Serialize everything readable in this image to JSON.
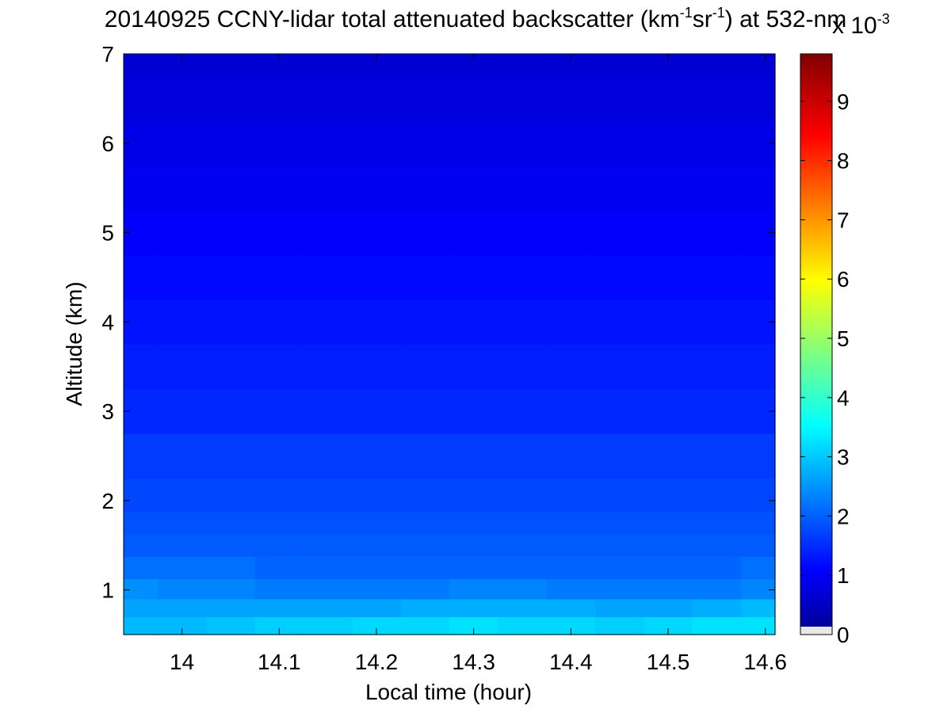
{
  "chart_data": {
    "type": "heatmap",
    "title": {
      "prefix": "20140925 CCNY-lidar total attenuated backscatter (km",
      "sup1": "-1",
      "mid": "sr",
      "sup2": "-1",
      "suffix": ") at 532-nm"
    },
    "xlabel": "Local time (hour)",
    "ylabel": "Altitude (km)",
    "xlim": [
      13.94,
      14.61
    ],
    "ylim": [
      0.5,
      7
    ],
    "x_ticks": [
      "14",
      "14.1",
      "14.2",
      "14.3",
      "14.4",
      "14.5",
      "14.6"
    ],
    "y_ticks": [
      "1",
      "2",
      "3",
      "4",
      "5",
      "6",
      "7"
    ],
    "colorbar": {
      "range": [
        0,
        9.8
      ],
      "ticks": [
        "0",
        "1",
        "2",
        "3",
        "4",
        "5",
        "6",
        "7",
        "8",
        "9"
      ],
      "exponent_base": "x 10",
      "exponent_power": "-3",
      "colormap": "jet"
    },
    "time_bins": [
      13.95,
      14.0,
      14.05,
      14.1,
      14.15,
      14.2,
      14.25,
      14.3,
      14.35,
      14.4,
      14.45,
      14.5,
      14.55,
      14.6
    ],
    "altitude_bins": [
      0.6,
      0.8,
      1.0,
      1.25,
      1.5,
      1.75,
      2.0,
      2.5,
      3.0,
      3.5,
      4.0,
      4.5,
      5.0,
      5.5,
      6.0,
      6.5,
      7.0
    ],
    "values_x1e-3": [
      [
        3.0,
        3.0,
        3.1,
        3.2,
        3.2,
        3.3,
        3.3,
        3.4,
        3.3,
        3.3,
        3.2,
        3.3,
        3.4,
        3.4
      ],
      [
        2.8,
        2.8,
        2.8,
        2.8,
        2.8,
        2.8,
        2.9,
        2.9,
        2.9,
        2.9,
        2.8,
        2.8,
        2.9,
        3.0
      ],
      [
        2.6,
        2.5,
        2.5,
        2.4,
        2.4,
        2.4,
        2.4,
        2.5,
        2.5,
        2.4,
        2.4,
        2.4,
        2.4,
        2.5
      ],
      [
        2.3,
        2.3,
        2.3,
        2.2,
        2.2,
        2.2,
        2.2,
        2.2,
        2.2,
        2.2,
        2.2,
        2.2,
        2.2,
        2.3
      ],
      [
        2.1,
        2.1,
        2.1,
        2.1,
        2.1,
        2.1,
        2.1,
        2.1,
        2.1,
        2.1,
        2.1,
        2.1,
        2.1,
        2.1
      ],
      [
        2.0,
        2.0,
        2.0,
        2.0,
        2.0,
        2.0,
        2.0,
        2.0,
        2.0,
        2.0,
        2.0,
        2.0,
        2.0,
        2.0
      ],
      [
        1.9,
        1.9,
        1.9,
        1.9,
        1.9,
        1.9,
        1.9,
        1.9,
        1.9,
        1.9,
        1.9,
        1.9,
        1.9,
        1.9
      ],
      [
        1.8,
        1.8,
        1.8,
        1.8,
        1.8,
        1.8,
        1.8,
        1.8,
        1.8,
        1.8,
        1.8,
        1.8,
        1.8,
        1.8
      ],
      [
        1.6,
        1.6,
        1.6,
        1.6,
        1.6,
        1.6,
        1.6,
        1.6,
        1.6,
        1.6,
        1.6,
        1.6,
        1.6,
        1.6
      ],
      [
        1.5,
        1.5,
        1.5,
        1.5,
        1.5,
        1.5,
        1.5,
        1.5,
        1.5,
        1.5,
        1.5,
        1.5,
        1.5,
        1.5
      ],
      [
        1.4,
        1.4,
        1.4,
        1.4,
        1.4,
        1.4,
        1.4,
        1.4,
        1.4,
        1.4,
        1.4,
        1.4,
        1.4,
        1.4
      ],
      [
        1.3,
        1.3,
        1.3,
        1.3,
        1.3,
        1.3,
        1.3,
        1.3,
        1.3,
        1.3,
        1.3,
        1.3,
        1.3,
        1.3
      ],
      [
        1.2,
        1.2,
        1.2,
        1.2,
        1.2,
        1.2,
        1.2,
        1.2,
        1.2,
        1.2,
        1.2,
        1.2,
        1.2,
        1.2
      ],
      [
        1.1,
        1.1,
        1.1,
        1.1,
        1.1,
        1.1,
        1.1,
        1.1,
        1.1,
        1.1,
        1.1,
        1.1,
        1.1,
        1.1
      ],
      [
        1.0,
        1.0,
        1.0,
        1.0,
        1.0,
        1.0,
        1.0,
        1.0,
        1.0,
        1.0,
        1.0,
        1.0,
        1.0,
        1.0
      ],
      [
        0.9,
        0.9,
        0.9,
        0.9,
        0.9,
        0.9,
        0.9,
        0.9,
        0.9,
        0.9,
        0.9,
        0.9,
        0.9,
        0.9
      ],
      [
        0.8,
        0.8,
        0.8,
        0.8,
        0.8,
        0.8,
        0.8,
        0.8,
        0.8,
        0.8,
        0.8,
        0.8,
        0.8,
        0.8
      ]
    ]
  }
}
